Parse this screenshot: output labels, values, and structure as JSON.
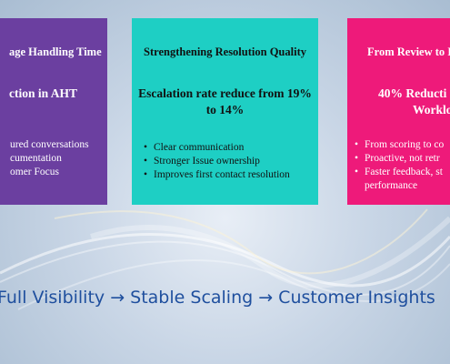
{
  "cards": [
    {
      "title": "age Handling Time",
      "headline": "ction in AHT",
      "bullets": [
        "ured conversations",
        "cumentation",
        "omer Focus"
      ],
      "color": "#6b3fa0"
    },
    {
      "title": "Strengthening Resolution Quality",
      "headline": "Escalation rate reduce from 19% to 14%",
      "bullets": [
        "Clear communication",
        "Stronger Issue ownership",
        "Improves first contact resolution"
      ],
      "color": "#1ecfc4"
    },
    {
      "title": "From Review to I",
      "headline_line1": "40% Reducti",
      "headline_line2": "Worklo",
      "bullets": [
        "From scoring to co",
        "Proactive, not retr",
        "Faster feedback, st performance"
      ],
      "color": "#ee1a7a"
    }
  ],
  "tagline": "Full Visibility → Stable Scaling → Customer Insights"
}
